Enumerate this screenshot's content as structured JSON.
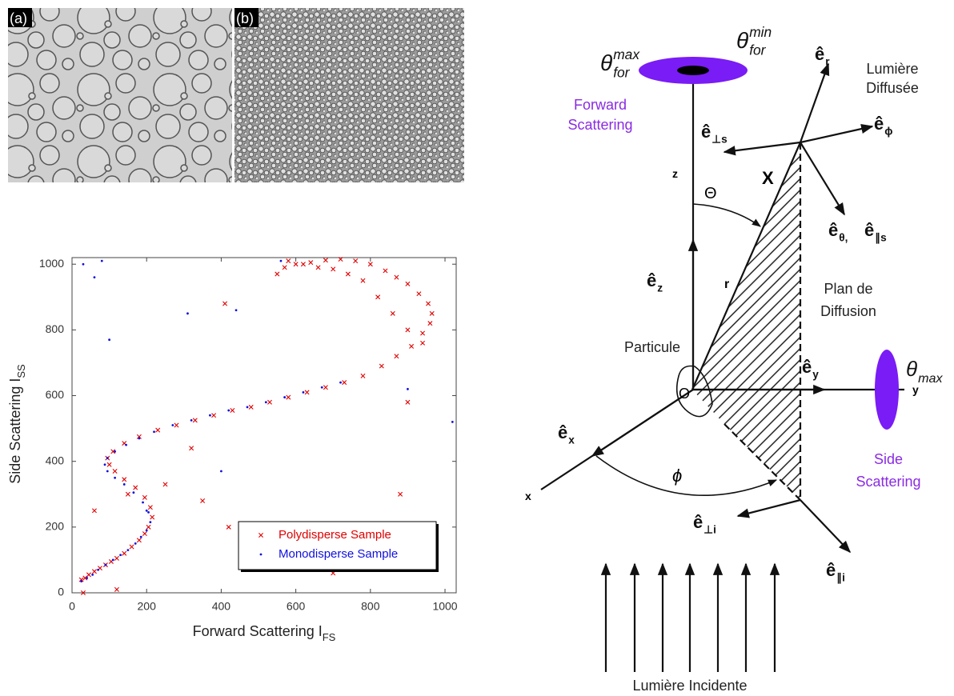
{
  "panels": {
    "a": "(a)",
    "b": "(b)"
  },
  "chart_data": {
    "type": "scatter",
    "xlabel": "Forward Scattering I",
    "xlabel_sub": "FS",
    "ylabel": "Side Scattering I",
    "ylabel_sub": "SS",
    "xlim": [
      0,
      1030
    ],
    "ylim": [
      0,
      1020
    ],
    "xticks": [
      0,
      200,
      400,
      600,
      800,
      1000
    ],
    "yticks": [
      0,
      200,
      400,
      600,
      800,
      1000
    ],
    "grid": false,
    "legend": "lower right",
    "series": [
      {
        "name": "Polydisperse Sample",
        "color": "#e00000",
        "marker": "x",
        "x": [
          25,
          35,
          45,
          60,
          75,
          90,
          105,
          120,
          140,
          160,
          180,
          195,
          205,
          215,
          210,
          195,
          170,
          140,
          115,
          100,
          95,
          110,
          140,
          180,
          230,
          280,
          330,
          380,
          430,
          480,
          530,
          580,
          630,
          680,
          730,
          780,
          830,
          870,
          910,
          940,
          960,
          965,
          955,
          930,
          900,
          870,
          840,
          800,
          760,
          720,
          680,
          640,
          600,
          570,
          550,
          580,
          620,
          660,
          700,
          740,
          780,
          820,
          860,
          900,
          940,
          60,
          150,
          250,
          350,
          420,
          500,
          580,
          700,
          880,
          900,
          30,
          120,
          320,
          410
        ],
        "values": [
          40,
          45,
          55,
          65,
          75,
          85,
          95,
          105,
          120,
          140,
          160,
          180,
          200,
          230,
          260,
          290,
          320,
          345,
          370,
          390,
          410,
          430,
          455,
          475,
          495,
          510,
          525,
          540,
          555,
          565,
          580,
          595,
          610,
          625,
          640,
          660,
          690,
          720,
          750,
          790,
          820,
          850,
          880,
          910,
          940,
          960,
          980,
          1000,
          1010,
          1015,
          1012,
          1005,
          1000,
          990,
          970,
          1010,
          1000,
          990,
          985,
          970,
          950,
          900,
          850,
          800,
          760,
          250,
          300,
          330,
          280,
          200,
          150,
          100,
          60,
          300,
          580,
          0,
          10,
          440,
          880
        ]
      },
      {
        "name": "Monodisperse Sample",
        "color": "#1010e0",
        "marker": "dot",
        "x": [
          25,
          40,
          55,
          70,
          90,
          110,
          130,
          150,
          170,
          185,
          200,
          210,
          205,
          190,
          165,
          140,
          115,
          95,
          88,
          95,
          115,
          145,
          180,
          220,
          270,
          320,
          370,
          420,
          470,
          520,
          570,
          620,
          670,
          720,
          100,
          200,
          400,
          60,
          30,
          80,
          440,
          560,
          620,
          310,
          1020,
          900
        ],
        "values": [
          35,
          45,
          55,
          70,
          85,
          100,
          115,
          130,
          150,
          170,
          190,
          215,
          245,
          275,
          305,
          330,
          350,
          370,
          390,
          410,
          430,
          450,
          470,
          490,
          510,
          525,
          540,
          555,
          565,
          580,
          595,
          610,
          625,
          640,
          770,
          250,
          370,
          960,
          1000,
          1010,
          860,
          1010,
          200,
          850,
          520,
          620
        ]
      }
    ]
  },
  "diagram": {
    "forward_label": [
      "Forward",
      "Scattering"
    ],
    "side_label": [
      "Side",
      "Scattering"
    ],
    "scattered_light": [
      "Lumière",
      "Diffusée"
    ],
    "scattering_plane": [
      "Plan de",
      "Diffusion"
    ],
    "particle": "Particule",
    "incident_light": "Lumière Incidente",
    "axes": {
      "x": "x",
      "y": "y",
      "z": "z"
    },
    "symbols": {
      "Theta": "Θ",
      "phi": "ϕ",
      "r": "r",
      "X": "X",
      "origin": "O"
    },
    "theta_for_max": {
      "base": "θ",
      "sub": "for",
      "sup": "max"
    },
    "theta_for_min": {
      "base": "θ",
      "sub": "for",
      "sup": "min"
    },
    "theta_max": {
      "base": "θ",
      "sub": "max"
    },
    "vectors": [
      {
        "base": "ê",
        "sub": "r"
      },
      {
        "base": "ê",
        "sub": "ϕ"
      },
      {
        "base": "ê",
        "sub": "⊥s"
      },
      {
        "base": "ê",
        "sub": "θ,"
      },
      {
        "base": "ê",
        "sub": "∥s"
      },
      {
        "base": "ê",
        "sub": "z"
      },
      {
        "base": "ê",
        "sub": "y"
      },
      {
        "base": "ê",
        "sub": "x"
      },
      {
        "base": "ê",
        "sub": "⊥i"
      },
      {
        "base": "ê",
        "sub": "∥i"
      }
    ]
  }
}
